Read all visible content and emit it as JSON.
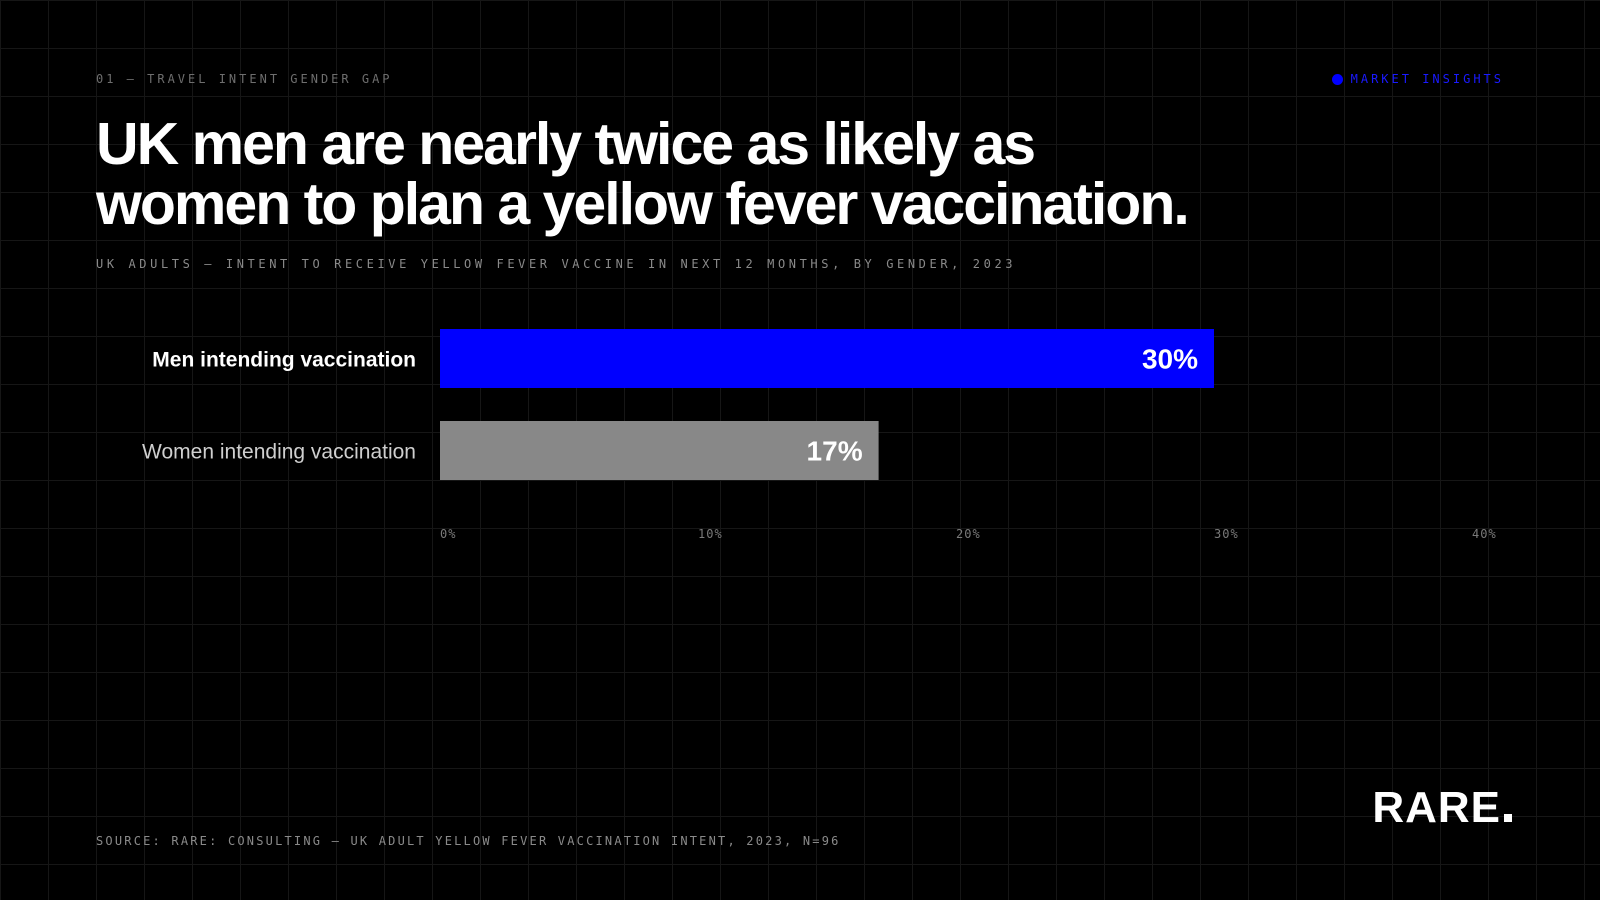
{
  "header": {
    "eyebrow": "01 — TRAVEL INTENT GENDER GAP",
    "tag": "MARKET INSIGHTS"
  },
  "title": {
    "line1": "UK men are nearly twice as likely as",
    "line2": "women to plan a yellow fever vaccination."
  },
  "subtitle": "UK ADULTS — INTENT TO RECEIVE YELLOW FEVER VACCINE IN NEXT 12 MONTHS, BY GENDER, 2023",
  "source": "SOURCE: RARE: CONSULTING — UK ADULT YELLOW FEVER VACCINATION INTENT, 2023, N=96",
  "logo": {
    "text": "RARE"
  },
  "colors": {
    "background": "#000000",
    "accent": "#0000ff",
    "secondary_bar": "#888888",
    "primary_label": "#ffffff",
    "secondary_label": "#cfcfcf",
    "tick": "#7a7a7a"
  },
  "chart_data": {
    "type": "bar",
    "orientation": "horizontal",
    "categories": [
      "Men intending vaccination",
      "Women intending vaccination"
    ],
    "values": [
      30,
      17
    ],
    "value_labels": [
      "30%",
      "17%"
    ],
    "bar_colors": [
      "#0000ff",
      "#888888"
    ],
    "xlim": [
      0,
      40
    ],
    "xticks": [
      "0%",
      "10%",
      "20%",
      "30%",
      "40%"
    ],
    "xlabel": "",
    "ylabel": "",
    "grid": true
  }
}
